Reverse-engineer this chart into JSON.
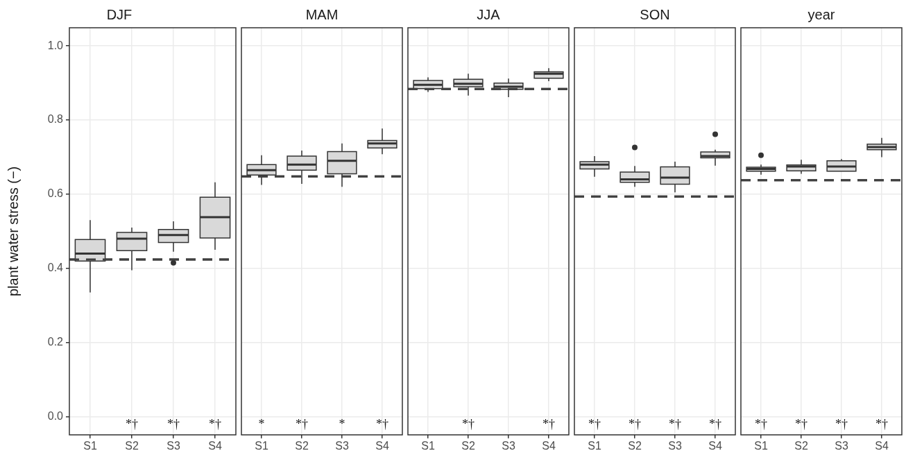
{
  "chart_data": [
    {
      "type": "box",
      "title": "DJF",
      "ylabel": "plant water stress (−)",
      "categories": [
        "S1",
        "S2",
        "S3",
        "S4"
      ],
      "boxes": [
        {
          "low": 0.335,
          "q1": 0.42,
          "median": 0.44,
          "q3": 0.478,
          "high": 0.53
        },
        {
          "low": 0.395,
          "q1": 0.448,
          "median": 0.48,
          "q3": 0.497,
          "high": 0.51
        },
        {
          "low": 0.445,
          "q1": 0.47,
          "median": 0.49,
          "q3": 0.505,
          "high": 0.527,
          "outliers": [
            0.415
          ]
        },
        {
          "low": 0.45,
          "q1": 0.482,
          "median": 0.538,
          "q3": 0.592,
          "high": 0.632
        }
      ],
      "ref_lines": [
        {
          "axis": "y",
          "value": 0.424,
          "color": "#404040",
          "line_style": "dashed"
        }
      ],
      "annotations": [
        null,
        "*†",
        "*†",
        "*†"
      ],
      "ylim": [
        -0.049,
        1.049
      ],
      "yticks": [
        {
          "value": 0,
          "label": "0.0"
        },
        {
          "value": 0.2,
          "label": "0.2"
        },
        {
          "value": 0.4,
          "label": "0.4"
        },
        {
          "value": 0.6,
          "label": "0.6"
        },
        {
          "value": 0.8,
          "label": "0.8"
        },
        {
          "value": 1,
          "label": "1.0"
        }
      ],
      "grid": true
    },
    {
      "type": "box",
      "title": "MAM",
      "categories": [
        "S1",
        "S2",
        "S3",
        "S4"
      ],
      "boxes": [
        {
          "low": 0.625,
          "q1": 0.652,
          "median": 0.665,
          "q3": 0.68,
          "high": 0.705
        },
        {
          "low": 0.628,
          "q1": 0.665,
          "median": 0.68,
          "q3": 0.703,
          "high": 0.718
        },
        {
          "low": 0.62,
          "q1": 0.655,
          "median": 0.69,
          "q3": 0.715,
          "high": 0.737
        },
        {
          "low": 0.708,
          "q1": 0.725,
          "median": 0.737,
          "q3": 0.745,
          "high": 0.777
        }
      ],
      "ref_lines": [
        {
          "axis": "y",
          "value": 0.648,
          "color": "#404040",
          "line_style": "dashed"
        }
      ],
      "annotations": [
        "*",
        "*†",
        "*",
        "*†"
      ],
      "ylim": [
        -0.049,
        1.049
      ],
      "yticks": [
        0,
        0.2,
        0.4,
        0.6,
        0.8,
        1
      ],
      "grid": true,
      "tick_labels": "x"
    },
    {
      "type": "box",
      "title": "JJA",
      "categories": [
        "S1",
        "S2",
        "S3",
        "S4"
      ],
      "boxes": [
        {
          "low": 0.876,
          "q1": 0.885,
          "median": 0.895,
          "q3": 0.907,
          "high": 0.915
        },
        {
          "low": 0.866,
          "q1": 0.89,
          "median": 0.898,
          "q3": 0.91,
          "high": 0.925
        },
        {
          "low": 0.862,
          "q1": 0.883,
          "median": 0.89,
          "q3": 0.9,
          "high": 0.912
        },
        {
          "low": 0.905,
          "q1": 0.913,
          "median": 0.925,
          "q3": 0.93,
          "high": 0.94
        }
      ],
      "ref_lines": [
        {
          "axis": "y",
          "value": 0.884,
          "color": "#404040",
          "line_style": "dashed"
        }
      ],
      "annotations": [
        null,
        "*†",
        null,
        "*†"
      ],
      "ylim": [
        -0.049,
        1.049
      ],
      "yticks": [
        0,
        0.2,
        0.4,
        0.6,
        0.8,
        1
      ],
      "grid": true,
      "tick_labels": "x"
    },
    {
      "type": "box",
      "title": "SON",
      "categories": [
        "S1",
        "S2",
        "S3",
        "S4"
      ],
      "boxes": [
        {
          "low": 0.647,
          "q1": 0.668,
          "median": 0.68,
          "q3": 0.688,
          "high": 0.703
        },
        {
          "low": 0.62,
          "q1": 0.632,
          "median": 0.64,
          "q3": 0.66,
          "high": 0.676,
          "outliers": [
            0.726
          ]
        },
        {
          "low": 0.605,
          "q1": 0.627,
          "median": 0.645,
          "q3": 0.674,
          "high": 0.688
        },
        {
          "low": 0.677,
          "q1": 0.698,
          "median": 0.703,
          "q3": 0.714,
          "high": 0.72,
          "outliers": [
            0.762
          ]
        }
      ],
      "ref_lines": [
        {
          "axis": "y",
          "value": 0.594,
          "color": "#404040",
          "line_style": "dashed"
        }
      ],
      "annotations": [
        "*†",
        "*†",
        "*†",
        "*†"
      ],
      "ylim": [
        -0.049,
        1.049
      ],
      "yticks": [
        0,
        0.2,
        0.4,
        0.6,
        0.8,
        1
      ],
      "grid": true,
      "tick_labels": "x"
    },
    {
      "type": "box",
      "title": "year",
      "categories": [
        "S1",
        "S2",
        "S3",
        "S4"
      ],
      "boxes": [
        {
          "low": 0.653,
          "q1": 0.662,
          "median": 0.668,
          "q3": 0.673,
          "high": 0.68,
          "outliers": [
            0.705
          ]
        },
        {
          "low": 0.655,
          "q1": 0.663,
          "median": 0.675,
          "q3": 0.679,
          "high": 0.693
        },
        {
          "low": 0.662,
          "q1": 0.662,
          "median": 0.675,
          "q3": 0.69,
          "high": 0.695
        },
        {
          "low": 0.7,
          "q1": 0.72,
          "median": 0.727,
          "q3": 0.735,
          "high": 0.752
        }
      ],
      "ref_lines": [
        {
          "axis": "y",
          "value": 0.638,
          "color": "#404040",
          "line_style": "dashed"
        }
      ],
      "annotations": [
        "*†",
        "*†",
        "*†",
        "*†"
      ],
      "ylim": [
        -0.049,
        1.049
      ],
      "yticks": [
        0,
        0.2,
        0.4,
        0.6,
        0.8,
        1
      ],
      "grid": true,
      "tick_labels": "x"
    }
  ]
}
